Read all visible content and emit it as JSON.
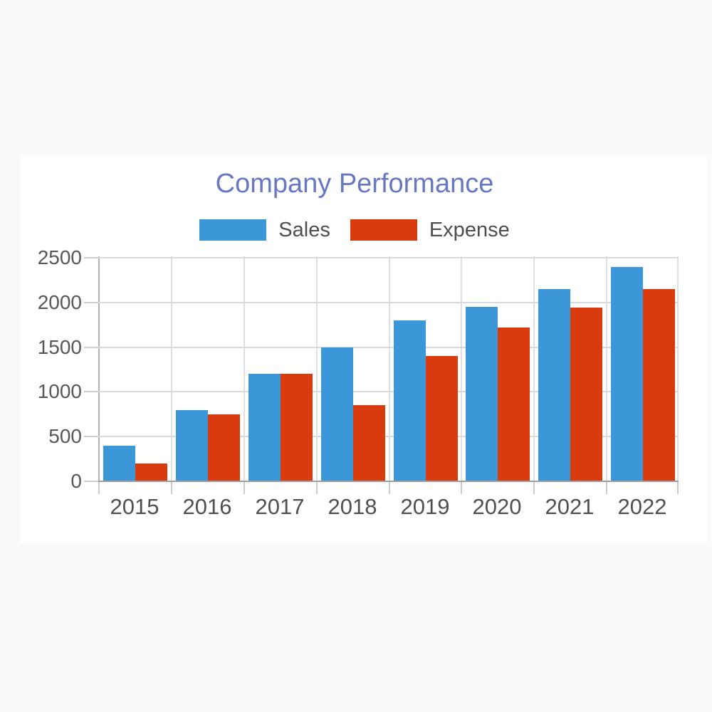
{
  "page": {
    "background_color": "#fafafa",
    "card_background_color": "#ffffff"
  },
  "chart": {
    "title_color": "#6877c2",
    "axis_text_color": "#57575a",
    "gridline_color": "#d9d9d9",
    "axis_line_color": "#9e9e9e"
  },
  "chart_data": {
    "type": "bar",
    "title": "Company Performance",
    "categories": [
      "2015",
      "2016",
      "2017",
      "2018",
      "2019",
      "2020",
      "2021",
      "2022"
    ],
    "series": [
      {
        "name": "Sales",
        "color": "#3b97d8",
        "values": [
          400,
          800,
          1200,
          1500,
          1800,
          1950,
          2150,
          2400
        ]
      },
      {
        "name": "Expense",
        "color": "#d93a0e",
        "values": [
          200,
          750,
          1200,
          850,
          1400,
          1720,
          1940,
          2150
        ]
      }
    ],
    "xlabel": "",
    "ylabel": "",
    "ylim": [
      0,
      2500
    ],
    "yticks": [
      0,
      500,
      1000,
      1500,
      2000,
      2500
    ],
    "grid": true,
    "legend_position": "top-center"
  }
}
